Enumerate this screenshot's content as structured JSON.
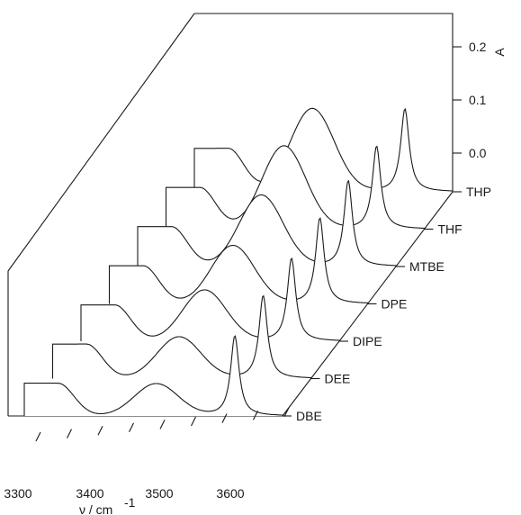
{
  "chart_data": {
    "type": "line",
    "xlabel": "ν / cm",
    "xlabel_superscript": "-1",
    "ylabel": "A",
    "x_ticks": [
      "3300",
      "3400",
      "3500",
      "3600"
    ],
    "y_ticks": [
      "0.0",
      "0.1",
      "0.2"
    ],
    "ylim": [
      -0.05,
      0.25
    ],
    "xlim": [
      3260,
      3720
    ],
    "series": [
      {
        "name": "DBE",
        "free_peak": {
          "x": 3635,
          "y": 0.135
        },
        "bonded_peak": {
          "x": 3495,
          "y": 0.054
        }
      },
      {
        "name": "DEE",
        "free_peak": {
          "x": 3635,
          "y": 0.14
        },
        "bonded_peak": {
          "x": 3485,
          "y": 0.07
        }
      },
      {
        "name": "DIPE",
        "free_peak": {
          "x": 3635,
          "y": 0.14
        },
        "bonded_peak": {
          "x": 3480,
          "y": 0.086
        }
      },
      {
        "name": "DPE",
        "free_peak": {
          "x": 3635,
          "y": 0.145
        },
        "bonded_peak": {
          "x": 3480,
          "y": 0.098
        }
      },
      {
        "name": "MTBE",
        "free_peak": {
          "x": 3635,
          "y": 0.145
        },
        "bonded_peak": {
          "x": 3480,
          "y": 0.12
        }
      },
      {
        "name": "THF",
        "free_peak": {
          "x": 3635,
          "y": 0.14
        },
        "bonded_peak": {
          "x": 3470,
          "y": 0.14
        }
      },
      {
        "name": "THP",
        "free_peak": {
          "x": 3635,
          "y": 0.14
        },
        "bonded_peak": {
          "x": 3470,
          "y": 0.14
        }
      }
    ],
    "legend": "none",
    "grid": false
  }
}
